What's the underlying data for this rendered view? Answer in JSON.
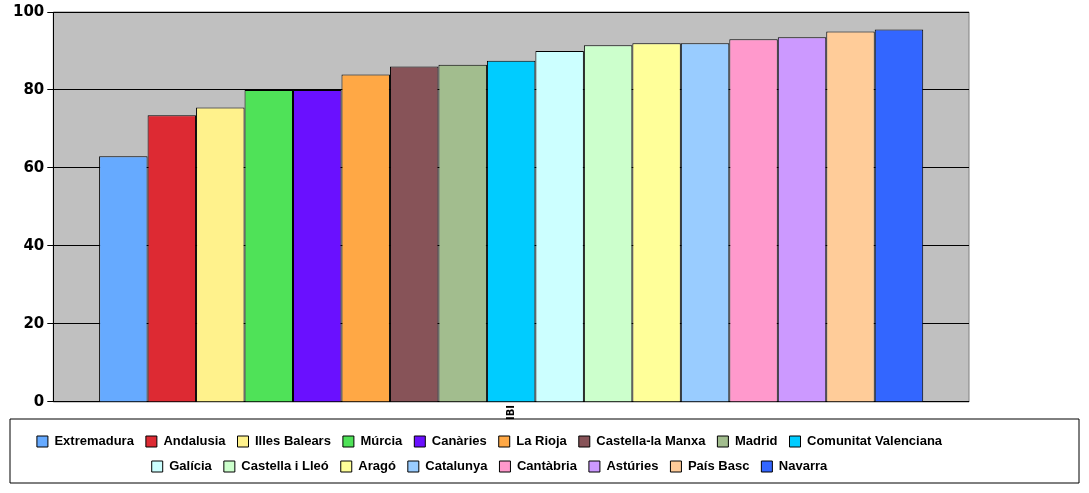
{
  "chart_data": {
    "type": "bar",
    "categories": [
      "IBI"
    ],
    "series": [
      {
        "name": "Extremadura",
        "color": "#66aaff",
        "values": [
          63
        ]
      },
      {
        "name": "Andalusia",
        "color": "#dd2a33",
        "values": [
          73.5
        ]
      },
      {
        "name": "Illes Balears",
        "color": "#fff28c",
        "values": [
          75.5
        ]
      },
      {
        "name": "Múrcia",
        "color": "#4fe258",
        "values": [
          80
        ]
      },
      {
        "name": "Canàries",
        "color": "#6a10ff",
        "values": [
          80
        ]
      },
      {
        "name": "La Rioja",
        "color": "#ffa845",
        "values": [
          84
        ]
      },
      {
        "name": "Castella-la Manxa",
        "color": "#875358",
        "values": [
          86
        ]
      },
      {
        "name": "Madrid",
        "color": "#a2bd8e",
        "values": [
          86.5
        ]
      },
      {
        "name": "Comunitat Valenciana",
        "color": "#00ccff",
        "values": [
          87.5
        ]
      },
      {
        "name": "Galícia",
        "color": "#ccffff",
        "values": [
          90
        ]
      },
      {
        "name": "Castella i Lleó",
        "color": "#ccffcc",
        "values": [
          91.5
        ]
      },
      {
        "name": "Aragó",
        "color": "#ffff99",
        "values": [
          92
        ]
      },
      {
        "name": "Catalunya",
        "color": "#99ccff",
        "values": [
          92
        ]
      },
      {
        "name": "Cantàbria",
        "color": "#ff99cc",
        "values": [
          93
        ]
      },
      {
        "name": "Astúries",
        "color": "#cc99ff",
        "values": [
          93.5
        ]
      },
      {
        "name": "País Basc",
        "color": "#ffcc99",
        "values": [
          95
        ]
      },
      {
        "name": "Navarra",
        "color": "#3366ff",
        "values": [
          95.5
        ]
      }
    ],
    "ylim": [
      0,
      100
    ],
    "yticks": [
      0,
      20,
      40,
      60,
      80,
      100
    ],
    "grid": "y",
    "legend": "bottom"
  }
}
